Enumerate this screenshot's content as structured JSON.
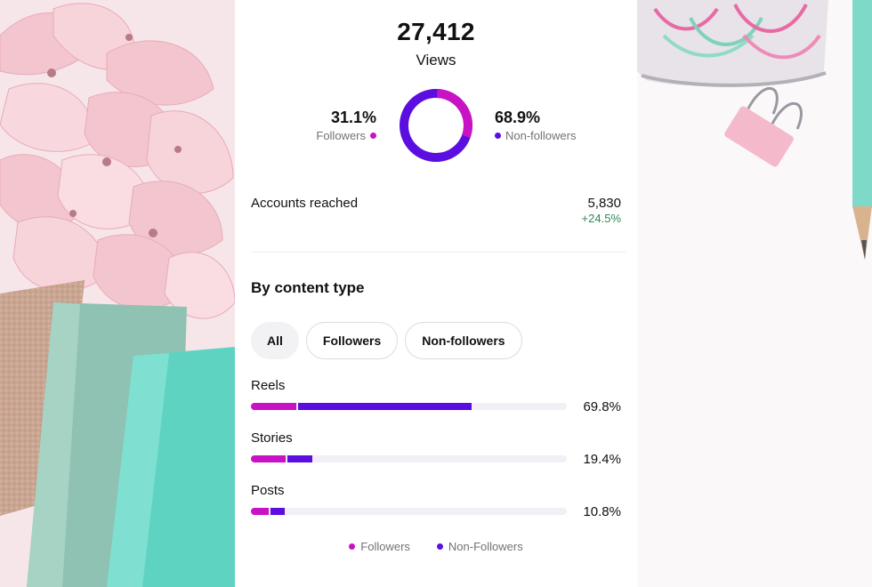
{
  "views": {
    "value": "27,412",
    "label": "Views"
  },
  "followers": {
    "percent": "31.1%",
    "label": "Followers",
    "share": 31.1
  },
  "non_followers": {
    "percent": "68.9%",
    "label": "Non-followers",
    "share": 68.9
  },
  "accounts_reached": {
    "label": "Accounts reached",
    "value": "5,830",
    "change": "+24.5%"
  },
  "content_section": {
    "title": "By content type",
    "filters": [
      "All",
      "Followers",
      "Non-followers"
    ],
    "active_filter": "All",
    "rows": [
      {
        "label": "Reels",
        "percent": "69.8%",
        "followers_share": 14.4,
        "non_followers_share": 55.4
      },
      {
        "label": "Stories",
        "percent": "19.4%",
        "followers_share": 11.0,
        "non_followers_share": 8.4
      },
      {
        "label": "Posts",
        "percent": "10.8%",
        "followers_share": 5.6,
        "non_followers_share": 5.2
      }
    ]
  },
  "legend": {
    "followers": "Followers",
    "non_followers": "Non-Followers"
  },
  "colors": {
    "followers": "#c813c4",
    "non_followers": "#5a0ee0",
    "track": "#f2eff6",
    "positive": "#2d8a55"
  }
}
